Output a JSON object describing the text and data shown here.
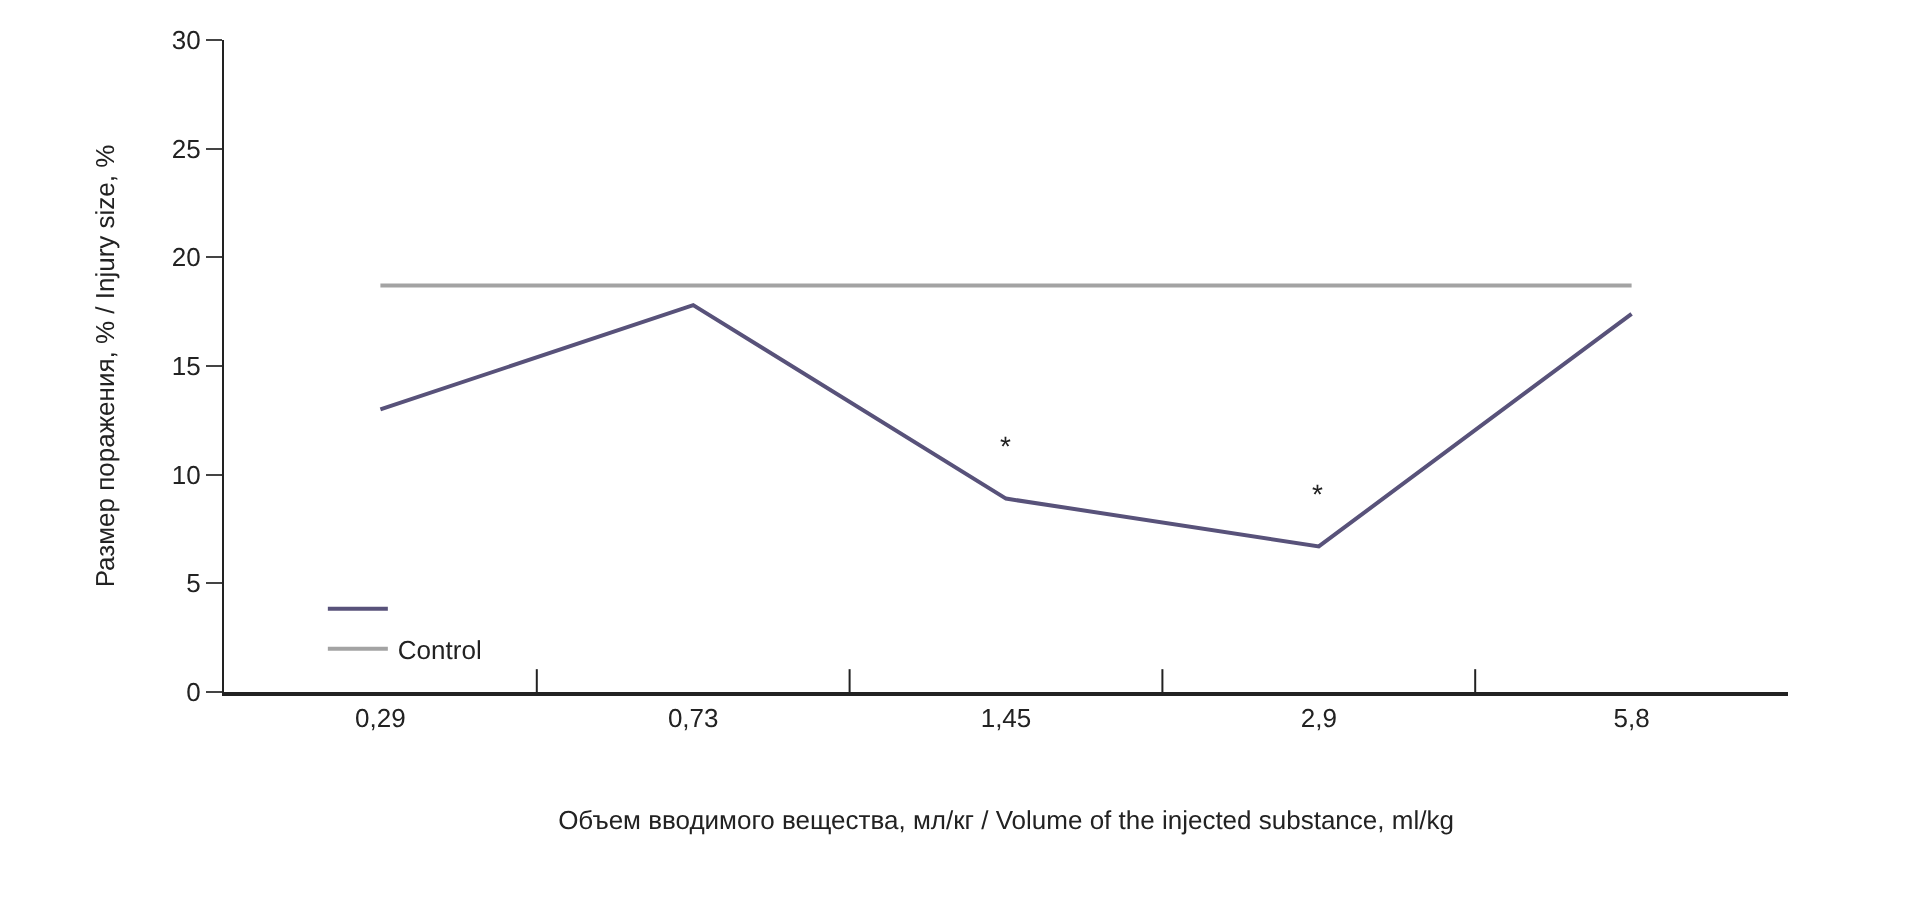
{
  "chart_data": {
    "type": "line",
    "xlabel": "Объем вводимого вещества, мл/кг / Volume of the injected substance, ml/kg",
    "ylabel": "Размер поражения, % / Injury size, %",
    "categories": [
      "0,29",
      "0,73",
      "1,45",
      "2,9",
      "5,8"
    ],
    "series": [
      {
        "color": "#58527a",
        "values": [
          13,
          17.8,
          8.9,
          6.7,
          17.4
        ]
      },
      {
        "name": "Control",
        "color": "#a3a3a3",
        "values": [
          18.7,
          18.7,
          18.7,
          18.7,
          18.7
        ]
      }
    ],
    "ylim": [
      0,
      30
    ],
    "yticks": [
      0,
      5,
      10,
      15,
      20,
      25,
      30
    ],
    "grid": false,
    "legend": "bottom left",
    "marker": "none",
    "line_style": "solid",
    "annotations": [
      {
        "text": "*",
        "x": "1,45",
        "y": 8.9
      },
      {
        "text": "*",
        "x": "2,9",
        "y": 6.7
      }
    ]
  }
}
